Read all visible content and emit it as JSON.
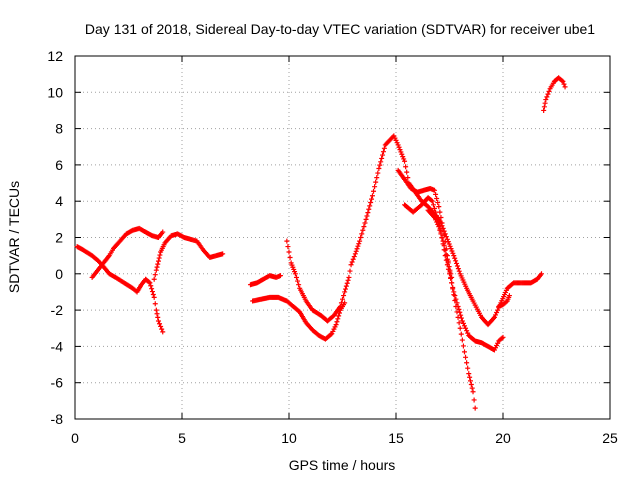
{
  "chart_data": {
    "type": "scatter",
    "title": "Day 131 of 2018, Sidereal Day-to-day VTEC variation (SDTVAR) for receiver ube1",
    "xlabel": "GPS time / hours",
    "ylabel": "SDTVAR / TECUs",
    "xlim": [
      0,
      25
    ],
    "ylim": [
      -8,
      12
    ],
    "xticks": [
      "0",
      "5",
      "10",
      "15",
      "20",
      "25"
    ],
    "yticks": [
      "-8",
      "-6",
      "-4",
      "-2",
      "0",
      "2",
      "4",
      "6",
      "8",
      "10",
      "12"
    ],
    "grid": true,
    "marker": "plus",
    "color": "#ff0000",
    "series": [
      {
        "points": [
          [
            0.1,
            1.5
          ],
          [
            0.4,
            1.3
          ],
          [
            0.8,
            1.0
          ],
          [
            1.1,
            0.7
          ],
          [
            1.4,
            0.3
          ],
          [
            1.6,
            0.0
          ],
          [
            1.9,
            -0.2
          ],
          [
            2.3,
            -0.5
          ],
          [
            2.7,
            -0.8
          ],
          [
            2.9,
            -1.0
          ],
          [
            3.1,
            -0.6
          ],
          [
            3.3,
            -0.3
          ],
          [
            3.5,
            -0.5
          ],
          [
            3.7,
            -1.3
          ],
          [
            3.8,
            -2.0
          ],
          [
            3.9,
            -2.6
          ],
          [
            4.1,
            -3.2
          ]
        ]
      },
      {
        "points": [
          [
            0.8,
            -0.2
          ],
          [
            1.0,
            0.1
          ],
          [
            1.2,
            0.4
          ],
          [
            1.4,
            0.7
          ],
          [
            1.6,
            1.0
          ],
          [
            1.8,
            1.4
          ],
          [
            2.1,
            1.8
          ],
          [
            2.4,
            2.2
          ],
          [
            2.7,
            2.4
          ],
          [
            3.0,
            2.5
          ],
          [
            3.3,
            2.3
          ],
          [
            3.6,
            2.1
          ],
          [
            3.9,
            2.0
          ],
          [
            4.1,
            2.3
          ]
        ]
      },
      {
        "points": [
          [
            3.7,
            -0.3
          ],
          [
            3.8,
            0.2
          ],
          [
            3.9,
            0.7
          ],
          [
            4.0,
            1.2
          ],
          [
            4.2,
            1.7
          ],
          [
            4.5,
            2.1
          ],
          [
            4.8,
            2.2
          ],
          [
            5.1,
            2.0
          ],
          [
            5.4,
            1.9
          ],
          [
            5.7,
            1.8
          ],
          [
            6.0,
            1.3
          ],
          [
            6.3,
            0.9
          ],
          [
            6.6,
            1.0
          ],
          [
            6.9,
            1.1
          ]
        ]
      },
      {
        "points": [
          [
            8.2,
            -0.6
          ],
          [
            8.5,
            -0.5
          ],
          [
            8.8,
            -0.3
          ],
          [
            9.1,
            -0.1
          ],
          [
            9.4,
            -0.2
          ],
          [
            9.6,
            -0.1
          ]
        ]
      },
      {
        "points": [
          [
            8.3,
            -1.5
          ],
          [
            8.7,
            -1.4
          ],
          [
            9.1,
            -1.3
          ],
          [
            9.5,
            -1.3
          ],
          [
            9.9,
            -1.5
          ],
          [
            10.2,
            -1.8
          ],
          [
            10.5,
            -2.1
          ],
          [
            10.8,
            -2.7
          ],
          [
            11.1,
            -3.1
          ],
          [
            11.4,
            -3.4
          ],
          [
            11.7,
            -3.6
          ],
          [
            12.0,
            -3.3
          ],
          [
            12.2,
            -2.8
          ],
          [
            12.4,
            -2.0
          ],
          [
            12.6,
            -1.6
          ]
        ]
      },
      {
        "points": [
          [
            9.9,
            1.8
          ],
          [
            10.0,
            1.2
          ],
          [
            10.1,
            0.6
          ],
          [
            10.3,
            0.0
          ],
          [
            10.5,
            -0.8
          ],
          [
            10.8,
            -1.5
          ],
          [
            11.1,
            -2.0
          ],
          [
            11.5,
            -2.3
          ],
          [
            11.8,
            -2.6
          ],
          [
            12.1,
            -2.3
          ],
          [
            12.4,
            -1.8
          ],
          [
            12.6,
            -1.0
          ],
          [
            12.8,
            -0.2
          ],
          [
            12.9,
            0.5
          ],
          [
            13.1,
            1.1
          ],
          [
            13.3,
            1.8
          ],
          [
            13.6,
            3.0
          ],
          [
            13.9,
            4.3
          ],
          [
            14.2,
            5.8
          ],
          [
            14.5,
            7.1
          ],
          [
            14.9,
            7.6
          ],
          [
            15.1,
            7.1
          ],
          [
            15.4,
            6.2
          ],
          [
            15.6,
            5.0
          ],
          [
            15.9,
            4.5
          ],
          [
            16.2,
            4.0
          ],
          [
            16.5,
            3.7
          ],
          [
            16.8,
            3.3
          ],
          [
            17.1,
            2.8
          ],
          [
            17.4,
            1.9
          ],
          [
            17.7,
            1.0
          ],
          [
            18.0,
            0.0
          ],
          [
            18.3,
            -0.8
          ],
          [
            18.6,
            -1.5
          ],
          [
            19.0,
            -2.4
          ],
          [
            19.3,
            -2.8
          ],
          [
            19.6,
            -2.4
          ],
          [
            19.9,
            -1.6
          ],
          [
            20.2,
            -0.8
          ],
          [
            20.5,
            -0.5
          ],
          [
            20.9,
            -0.5
          ],
          [
            21.3,
            -0.5
          ],
          [
            21.6,
            -0.3
          ],
          [
            21.8,
            0.0
          ]
        ]
      },
      {
        "points": [
          [
            15.1,
            5.7
          ],
          [
            15.4,
            5.2
          ],
          [
            15.7,
            4.7
          ],
          [
            16.0,
            4.5
          ],
          [
            16.3,
            4.6
          ],
          [
            16.6,
            4.7
          ],
          [
            16.8,
            4.6
          ],
          [
            17.0,
            3.7
          ],
          [
            17.2,
            2.5
          ],
          [
            17.4,
            1.0
          ],
          [
            17.6,
            -0.5
          ],
          [
            17.8,
            -1.8
          ],
          [
            18.0,
            -3.0
          ],
          [
            18.2,
            -4.3
          ],
          [
            18.4,
            -5.5
          ],
          [
            18.6,
            -6.5
          ],
          [
            18.7,
            -7.4
          ]
        ]
      },
      {
        "points": [
          [
            15.4,
            3.8
          ],
          [
            15.8,
            3.4
          ],
          [
            16.2,
            3.8
          ],
          [
            16.5,
            4.2
          ],
          [
            16.7,
            4.0
          ],
          [
            16.9,
            3.2
          ],
          [
            17.1,
            2.3
          ],
          [
            17.3,
            1.0
          ],
          [
            17.5,
            0.0
          ],
          [
            17.7,
            -1.0
          ],
          [
            17.9,
            -1.8
          ],
          [
            18.1,
            -2.6
          ],
          [
            18.4,
            -3.4
          ],
          [
            18.7,
            -3.7
          ],
          [
            19.0,
            -3.8
          ],
          [
            19.3,
            -4.0
          ],
          [
            19.6,
            -4.2
          ],
          [
            19.8,
            -3.7
          ],
          [
            20.0,
            -3.5
          ]
        ]
      },
      {
        "points": [
          [
            16.5,
            3.5
          ],
          [
            16.8,
            3.1
          ],
          [
            17.0,
            2.6
          ],
          [
            17.2,
            1.8
          ],
          [
            17.4,
            0.8
          ],
          [
            17.6,
            -0.2
          ]
        ]
      },
      {
        "points": [
          [
            19.8,
            -1.8
          ],
          [
            20.0,
            -1.7
          ],
          [
            20.2,
            -1.5
          ],
          [
            20.3,
            -1.2
          ]
        ]
      },
      {
        "points": [
          [
            21.9,
            9.0
          ],
          [
            22.0,
            9.6
          ],
          [
            22.2,
            10.2
          ],
          [
            22.4,
            10.6
          ],
          [
            22.6,
            10.8
          ],
          [
            22.8,
            10.6
          ],
          [
            22.9,
            10.3
          ]
        ]
      }
    ]
  }
}
